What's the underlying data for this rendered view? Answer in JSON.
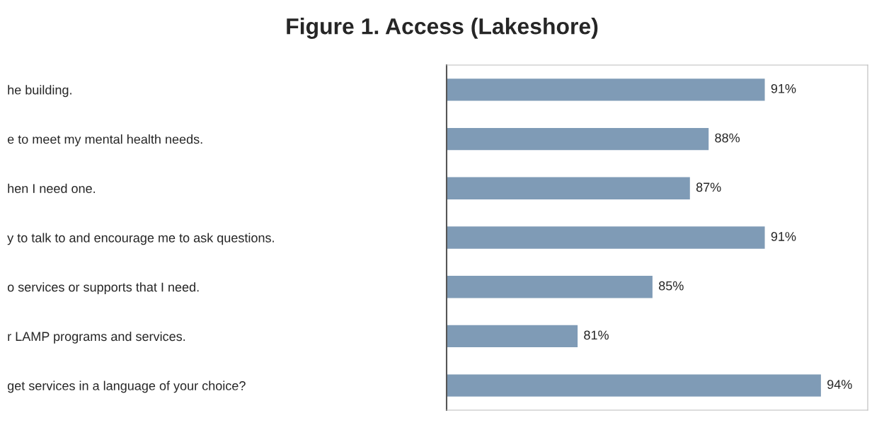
{
  "chart_data": {
    "type": "bar",
    "orientation": "horizontal",
    "title": "Figure 1. Access (Lakeshore)",
    "categories": [
      "he building.",
      "e to meet my mental health needs.",
      "hen I need one.",
      "y to talk to and encourage me to ask questions.",
      "o services or supports that I need.",
      "r LAMP programs and services.",
      "get services in a language of your choice?"
    ],
    "values": [
      91,
      88,
      87,
      91,
      85,
      81,
      94
    ],
    "value_labels": [
      "91%",
      "88%",
      "87%",
      "91%",
      "85%",
      "81%",
      "94%"
    ],
    "color": "#7f9bb6",
    "xlim": [
      74,
      96.5
    ],
    "grid": false,
    "legend": false
  }
}
